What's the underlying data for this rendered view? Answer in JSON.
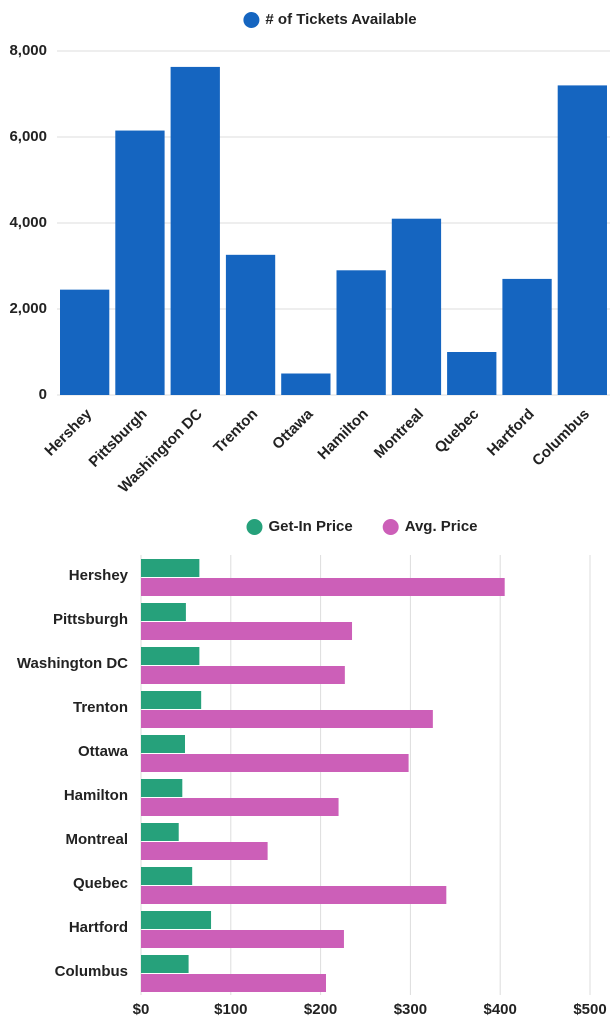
{
  "chart_data": [
    {
      "type": "bar",
      "categories": [
        "Hershey",
        "Pittsburgh",
        "Washington DC",
        "Trenton",
        "Ottawa",
        "Hamilton",
        "Montreal",
        "Quebec",
        "Hartford",
        "Columbus"
      ],
      "series": [
        {
          "name": "# of Tickets Available",
          "color": "#1565c0",
          "values": [
            2450,
            6150,
            7630,
            3260,
            500,
            2900,
            4100,
            1000,
            2700,
            7200
          ]
        }
      ],
      "ylim": [
        0,
        8000
      ],
      "yticks": [
        0,
        {
          "value": 2000,
          "label": "2,000"
        },
        {
          "value": 4000,
          "label": "4,000"
        },
        {
          "value": 6000,
          "label": "6,000"
        },
        {
          "value": 8000,
          "label": "8,000"
        }
      ],
      "grid": true
    },
    {
      "type": "barh",
      "categories": [
        "Hershey",
        "Pittsburgh",
        "Washington DC",
        "Trenton",
        "Ottawa",
        "Hamilton",
        "Montreal",
        "Quebec",
        "Hartford",
        "Columbus"
      ],
      "series": [
        {
          "name": "Get-In Price",
          "color": "#26a17b",
          "values": [
            65,
            50,
            65,
            67,
            49,
            46,
            42,
            57,
            78,
            53
          ]
        },
        {
          "name": "Avg. Price",
          "color": "#cc5fb8",
          "values": [
            405,
            235,
            227,
            325,
            298,
            220,
            141,
            340,
            226,
            206
          ]
        }
      ],
      "xlim": [
        0,
        500
      ],
      "xticks": [
        {
          "value": 0,
          "label": "$0"
        },
        {
          "value": 100,
          "label": "$100"
        },
        {
          "value": 200,
          "label": "$200"
        },
        {
          "value": 300,
          "label": "$300"
        },
        {
          "value": 400,
          "label": "$400"
        },
        {
          "value": 500,
          "label": "$500"
        }
      ],
      "grid": true
    }
  ]
}
